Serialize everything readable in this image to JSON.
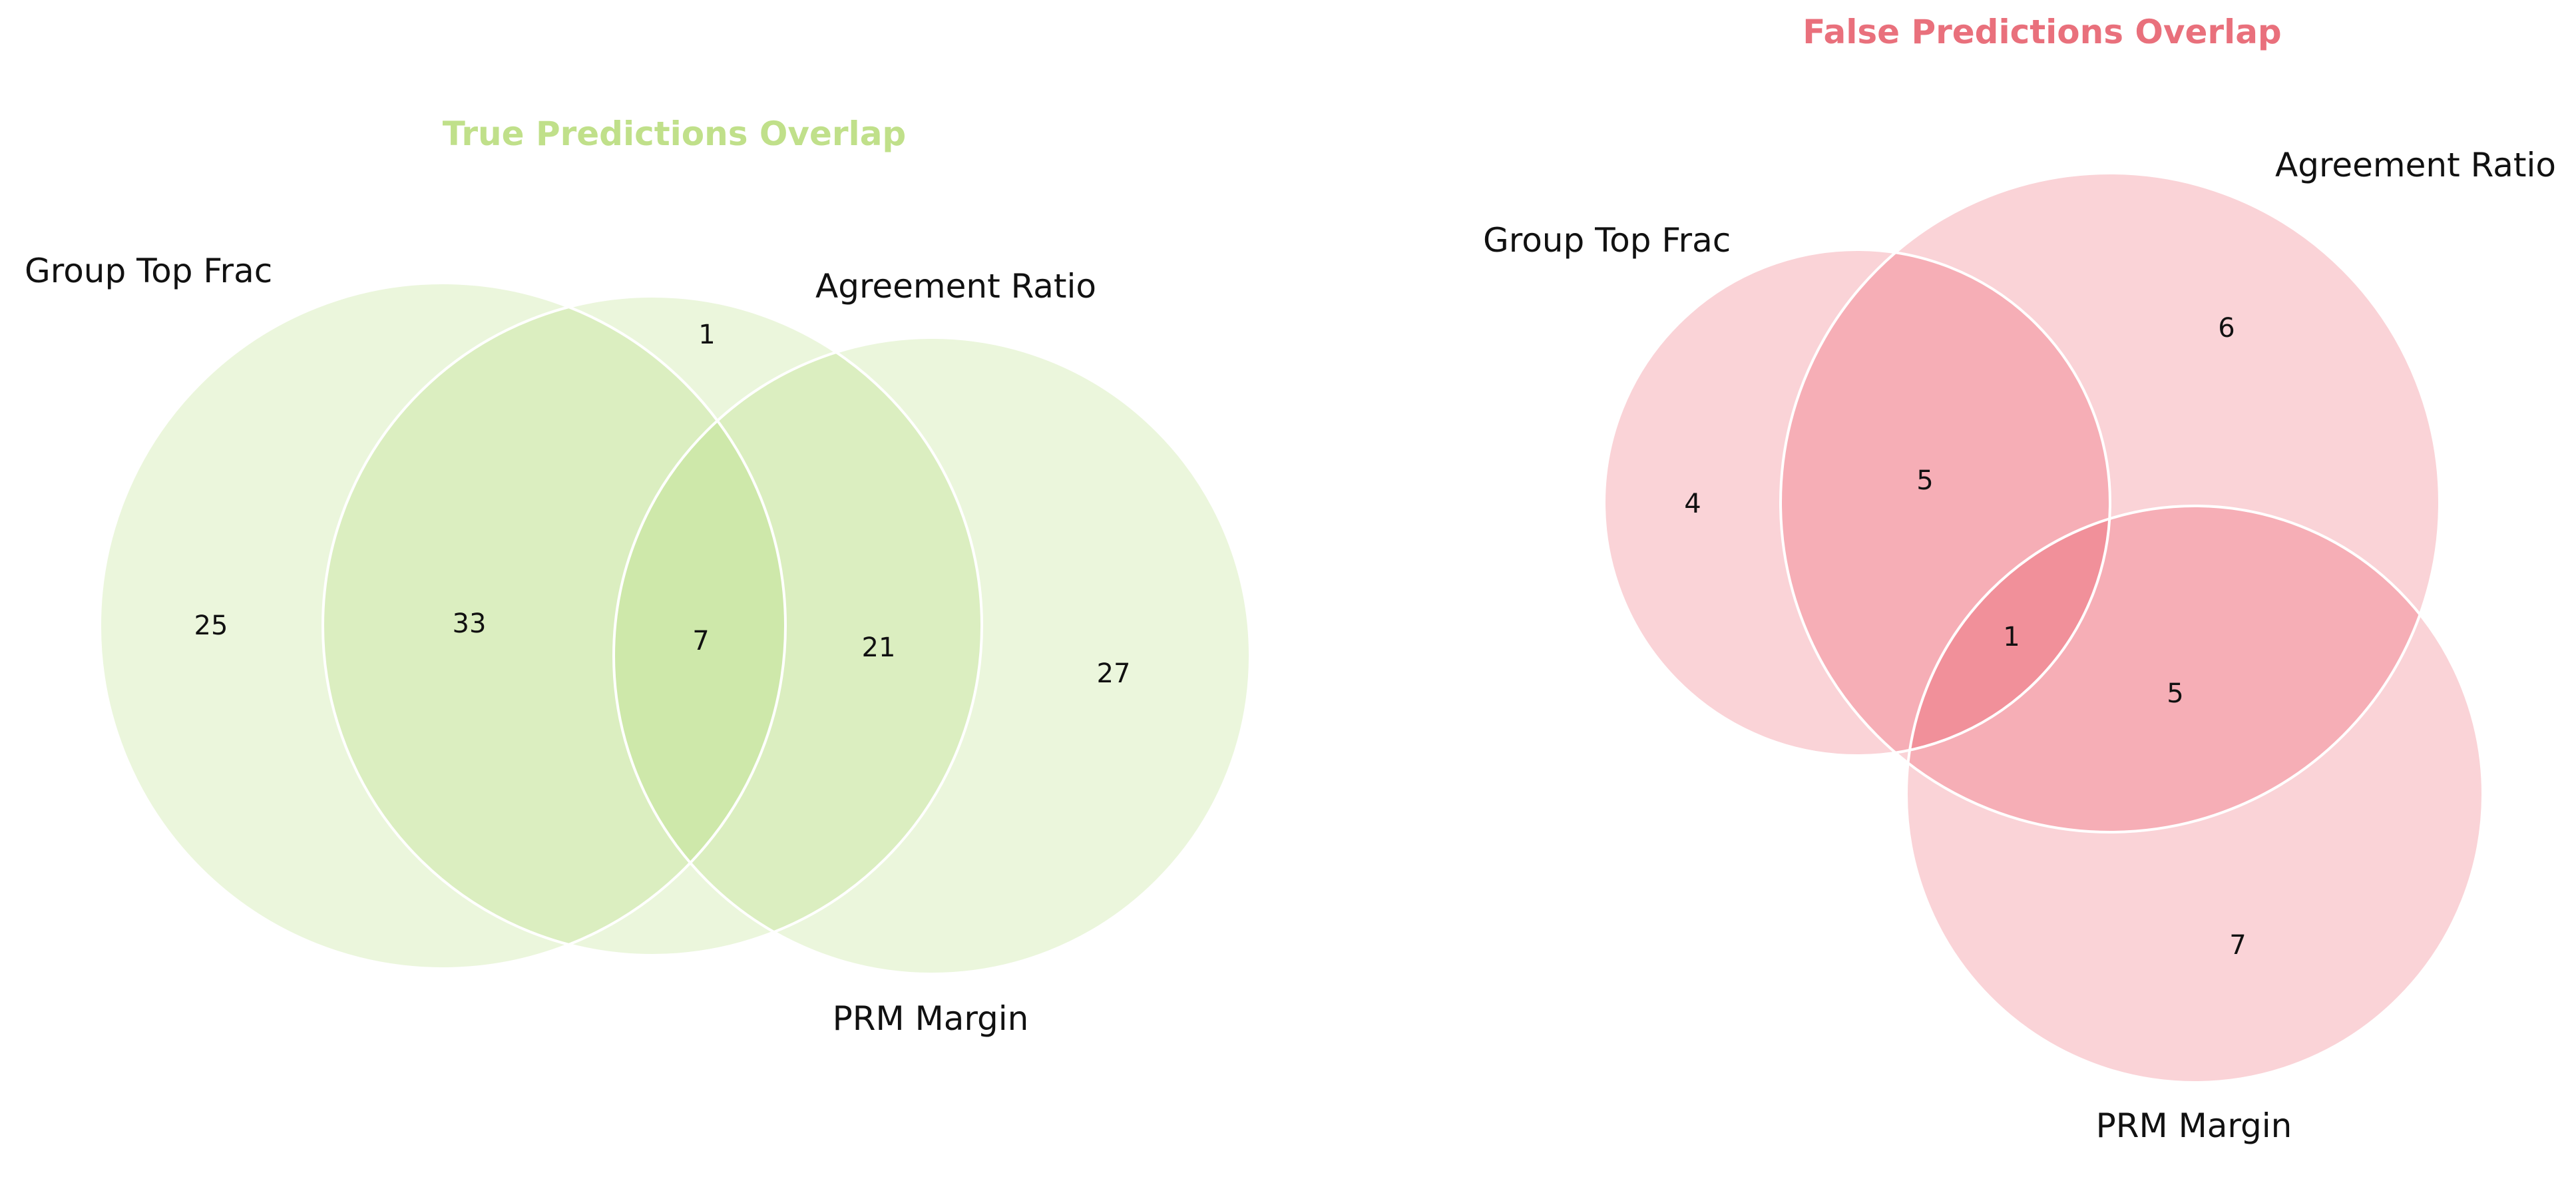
{
  "colors": {
    "true_fill": "#c5e59a",
    "true_title": "#c0e08a",
    "false_fill": "#f07f89",
    "false_title": "#e9707c",
    "outline": "#ffffff",
    "label": "#111111"
  },
  "panels": {
    "true": {
      "title": "True Predictions Overlap",
      "sets": {
        "group_top_frac": "Group Top Frac",
        "agreement_ratio": "Agreement Ratio",
        "prm_margin": "PRM Margin"
      },
      "regions": {
        "only_group_top_frac": "25",
        "group_and_agreement": "33",
        "only_agreement": "1",
        "all_three": "7",
        "agreement_and_prm": "21",
        "only_prm": "27"
      }
    },
    "false": {
      "title": "False Predictions Overlap",
      "sets": {
        "group_top_frac": "Group Top Frac",
        "agreement_ratio": "Agreement Ratio",
        "prm_margin": "PRM Margin"
      },
      "regions": {
        "only_group_top_frac": "4",
        "group_and_agreement": "5",
        "only_agreement": "6",
        "all_three": "1",
        "agreement_and_prm": "5",
        "only_prm": "7"
      }
    }
  }
}
